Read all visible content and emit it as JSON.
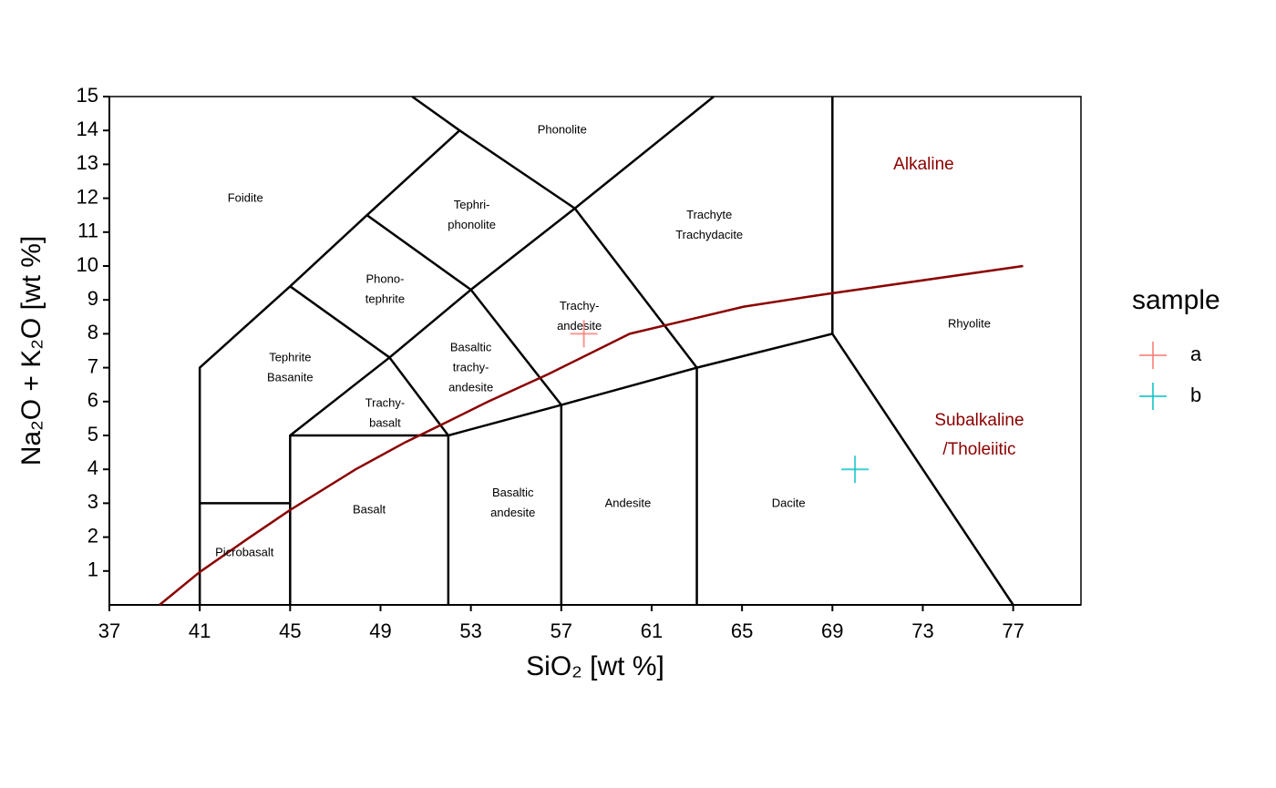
{
  "chart_data": {
    "type": "scatter",
    "x_label": "SiO₂ [wt %]",
    "y_label": "Na₂O + K₂O [wt %]",
    "xlim": [
      37,
      80
    ],
    "ylim": [
      0,
      15
    ],
    "xticks": [
      37,
      41,
      45,
      49,
      53,
      57,
      61,
      65,
      69,
      73,
      77
    ],
    "yticks": [
      1,
      2,
      3,
      4,
      5,
      6,
      7,
      8,
      9,
      10,
      11,
      12,
      13,
      14,
      15
    ],
    "legend_title": "sample",
    "legend": "right",
    "series": [
      {
        "name": "a",
        "color": "#F8766D",
        "x": [
          58
        ],
        "y": [
          8
        ]
      },
      {
        "name": "b",
        "color": "#00BFC4",
        "x": [
          70
        ],
        "y": [
          4
        ]
      }
    ],
    "boundary_color": "#000000",
    "boundaries": [
      {
        "x": [
          41,
          41,
          45,
          48.4,
          52.5,
          50.4
        ],
        "y": [
          0,
          7,
          9.4,
          11.5,
          14,
          15
        ]
      },
      {
        "x": [
          52.5,
          57.6,
          63.75
        ],
        "y": [
          14,
          11.7,
          15
        ]
      },
      {
        "x": [
          41,
          45
        ],
        "y": [
          3,
          3
        ]
      },
      {
        "x": [
          45,
          45,
          52
        ],
        "y": [
          0,
          5,
          5
        ]
      },
      {
        "x": [
          52,
          52,
          57,
          63,
          69,
          77
        ],
        "y": [
          0,
          5,
          5.9,
          7,
          8,
          0
        ]
      },
      {
        "x": [
          57,
          57
        ],
        "y": [
          0,
          5.9
        ]
      },
      {
        "x": [
          63,
          63
        ],
        "y": [
          0,
          7
        ]
      },
      {
        "x": [
          69,
          69
        ],
        "y": [
          8,
          15
        ]
      },
      {
        "x": [
          45,
          49.4,
          53,
          57.6,
          63
        ],
        "y": [
          5,
          7.3,
          9.3,
          11.7,
          7
        ]
      },
      {
        "x": [
          45,
          49.4,
          52
        ],
        "y": [
          9.4,
          7.3,
          5
        ]
      },
      {
        "x": [
          48.4,
          53,
          57
        ],
        "y": [
          11.5,
          9.3,
          5.9
        ]
      }
    ],
    "divider": {
      "color": "#8B0000",
      "x": [
        39.22,
        41,
        43.14,
        45,
        47.9,
        50.1,
        51.95,
        53.77,
        56.4,
        60.03,
        65.08,
        68.5,
        77.44
      ],
      "y": [
        0,
        0.97,
        1.96,
        2.8,
        4.0,
        4.8,
        5.4,
        6.0,
        6.8,
        8.0,
        8.8,
        9.15,
        10
      ]
    },
    "region_labels": [
      {
        "lines": [
          "Foidite"
        ],
        "x": 43.02,
        "y": 11.99
      },
      {
        "lines": [
          "Phonolite"
        ],
        "x": 57.04,
        "y": 14.0
      },
      {
        "lines": [
          "Tephri-",
          "phonolite"
        ],
        "x": 53.04,
        "y": 11.49
      },
      {
        "lines": [
          "Phono-",
          "tephrite"
        ],
        "x": 49.2,
        "y": 9.3
      },
      {
        "lines": [
          "Tephrite",
          "Basanite"
        ],
        "x": 45,
        "y": 6.99
      },
      {
        "lines": [
          "Trachy-",
          "basalt"
        ],
        "x": 49.2,
        "y": 5.65
      },
      {
        "lines": [
          "Basaltic",
          "trachy-",
          "andesite"
        ],
        "x": 53,
        "y": 6.99
      },
      {
        "lines": [
          "Trachy-",
          "andesite"
        ],
        "x": 57.8,
        "y": 8.5
      },
      {
        "lines": [
          "Trachyte",
          "Trachydacite"
        ],
        "x": 63.55,
        "y": 11.19
      },
      {
        "lines": [
          "Rhyolite"
        ],
        "x": 75.06,
        "y": 8.28
      },
      {
        "lines": [
          "Dacite"
        ],
        "x": 67.06,
        "y": 2.98
      },
      {
        "lines": [
          "Andesite"
        ],
        "x": 59.95,
        "y": 2.98
      },
      {
        "lines": [
          "Basaltic",
          "andesite"
        ],
        "x": 54.86,
        "y": 2.99
      },
      {
        "lines": [
          "Basalt"
        ],
        "x": 48.5,
        "y": 2.8
      },
      {
        "lines": [
          "Picrobasalt"
        ],
        "x": 42.98,
        "y": 1.53
      }
    ],
    "class_labels": [
      {
        "lines": [
          "Alkaline"
        ],
        "x": 73.04,
        "y": 12.98
      },
      {
        "lines": [
          "Subalkaline",
          "/Tholeiitic"
        ],
        "x": 75.5,
        "y": 5.0
      }
    ]
  }
}
